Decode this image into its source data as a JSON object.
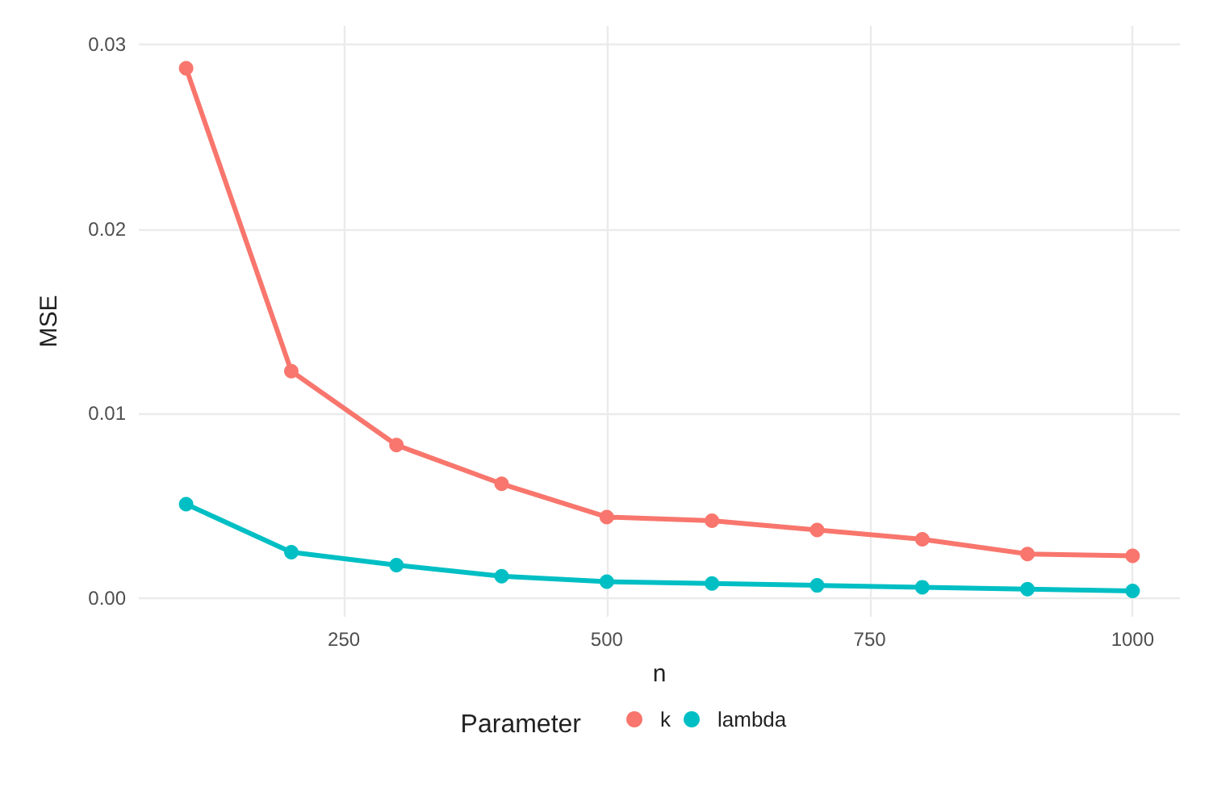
{
  "chart_data": {
    "type": "line",
    "xlabel": "n",
    "ylabel": "MSE",
    "legend_title": "Parameter",
    "x": [
      100,
      200,
      300,
      400,
      500,
      600,
      700,
      800,
      900,
      1000
    ],
    "series": [
      {
        "name": "k",
        "color": "#f8766d",
        "values": [
          0.0287,
          0.0123,
          0.0083,
          0.0062,
          0.0044,
          0.0042,
          0.0037,
          0.0032,
          0.0024,
          0.0023
        ]
      },
      {
        "name": "lambda",
        "color": "#00bfc4",
        "values": [
          0.0051,
          0.0025,
          0.0018,
          0.0012,
          0.0009,
          0.0008,
          0.0007,
          0.0006,
          0.0005,
          0.0004
        ]
      }
    ],
    "xlim": [
      55,
      1045
    ],
    "xticks": [
      250,
      500,
      750,
      1000
    ],
    "ylim": [
      -0.001,
      0.031
    ],
    "yticks": [
      {
        "value": 0,
        "label": "0.00"
      },
      {
        "value": 0.01,
        "label": "0.01"
      },
      {
        "value": 0.02,
        "label": "0.02"
      },
      {
        "value": 0.03,
        "label": "0.03"
      }
    ],
    "grid": true,
    "legend": "bottom",
    "marker": "circle",
    "line_style": "solid"
  }
}
